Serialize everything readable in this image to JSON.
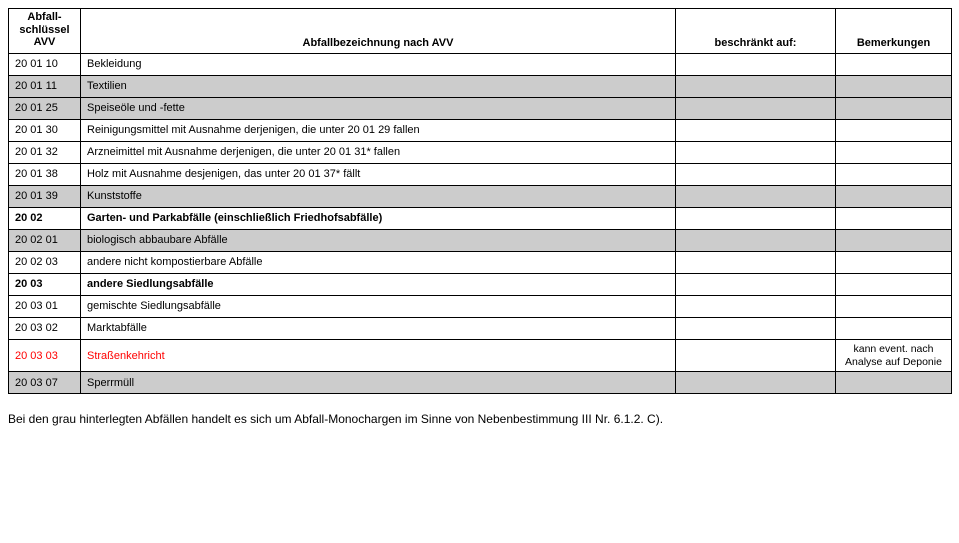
{
  "headers": {
    "code": "Abfall-\nschlüssel\nAVV",
    "desc": "Abfallbezeichnung nach AVV",
    "restrict": "beschränkt auf:",
    "remarks": "Bemerkungen"
  },
  "rows": [
    {
      "code": "20 01 10",
      "desc": "Bekleidung",
      "restrict": "",
      "remarks": "",
      "gray": false,
      "bold": false,
      "red": false
    },
    {
      "code": "20 01 11",
      "desc": "Textilien",
      "restrict": "",
      "remarks": "",
      "gray": true,
      "bold": false,
      "red": false
    },
    {
      "code": "20 01 25",
      "desc": "Speiseöle und -fette",
      "restrict": "",
      "remarks": "",
      "gray": true,
      "bold": false,
      "red": false
    },
    {
      "code": "20 01 30",
      "desc": "Reinigungsmittel mit Ausnahme derjenigen, die unter 20 01 29 fallen",
      "restrict": "",
      "remarks": "",
      "gray": false,
      "bold": false,
      "red": false
    },
    {
      "code": "20 01 32",
      "desc": "Arzneimittel mit Ausnahme derjenigen, die unter 20 01 31* fallen",
      "restrict": "",
      "remarks": "",
      "gray": false,
      "bold": false,
      "red": false
    },
    {
      "code": "20 01 38",
      "desc": "Holz mit Ausnahme desjenigen, das unter 20 01 37* fällt",
      "restrict": "",
      "remarks": "",
      "gray": false,
      "bold": false,
      "red": false
    },
    {
      "code": "20 01 39",
      "desc": "Kunststoffe",
      "restrict": "",
      "remarks": "",
      "gray": true,
      "bold": false,
      "red": false
    },
    {
      "code": "20 02",
      "desc": "Garten- und Parkabfälle (einschließlich Friedhofsabfälle)",
      "restrict": "",
      "remarks": "",
      "gray": false,
      "bold": true,
      "red": false
    },
    {
      "code": "20 02 01",
      "desc": "biologisch abbaubare Abfälle",
      "restrict": "",
      "remarks": "",
      "gray": true,
      "bold": false,
      "red": false
    },
    {
      "code": "20 02 03",
      "desc": "andere nicht kompostierbare Abfälle",
      "restrict": "",
      "remarks": "",
      "gray": false,
      "bold": false,
      "red": false
    },
    {
      "code": "20 03",
      "desc": "andere Siedlungsabfälle",
      "restrict": "",
      "remarks": "",
      "gray": false,
      "bold": true,
      "red": false
    },
    {
      "code": "20 03 01",
      "desc": "gemischte Siedlungsabfälle",
      "restrict": "",
      "remarks": "",
      "gray": false,
      "bold": false,
      "red": false
    },
    {
      "code": "20 03 02",
      "desc": "Marktabfälle",
      "restrict": "",
      "remarks": "",
      "gray": false,
      "bold": false,
      "red": false
    },
    {
      "code": "20 03 03",
      "desc": "Straßenkehricht",
      "restrict": "",
      "remarks": "kann event. nach Analyse auf Deponie",
      "gray": false,
      "bold": false,
      "red": true
    },
    {
      "code": "20 03 07",
      "desc": "Sperrmüll",
      "restrict": "",
      "remarks": "",
      "gray": true,
      "bold": false,
      "red": false
    }
  ],
  "footer": "Bei den grau hinterlegten Abfällen handelt es sich um Abfall-Monochargen im Sinne von Nebenbestimmung III Nr. 6.1.2. C)."
}
